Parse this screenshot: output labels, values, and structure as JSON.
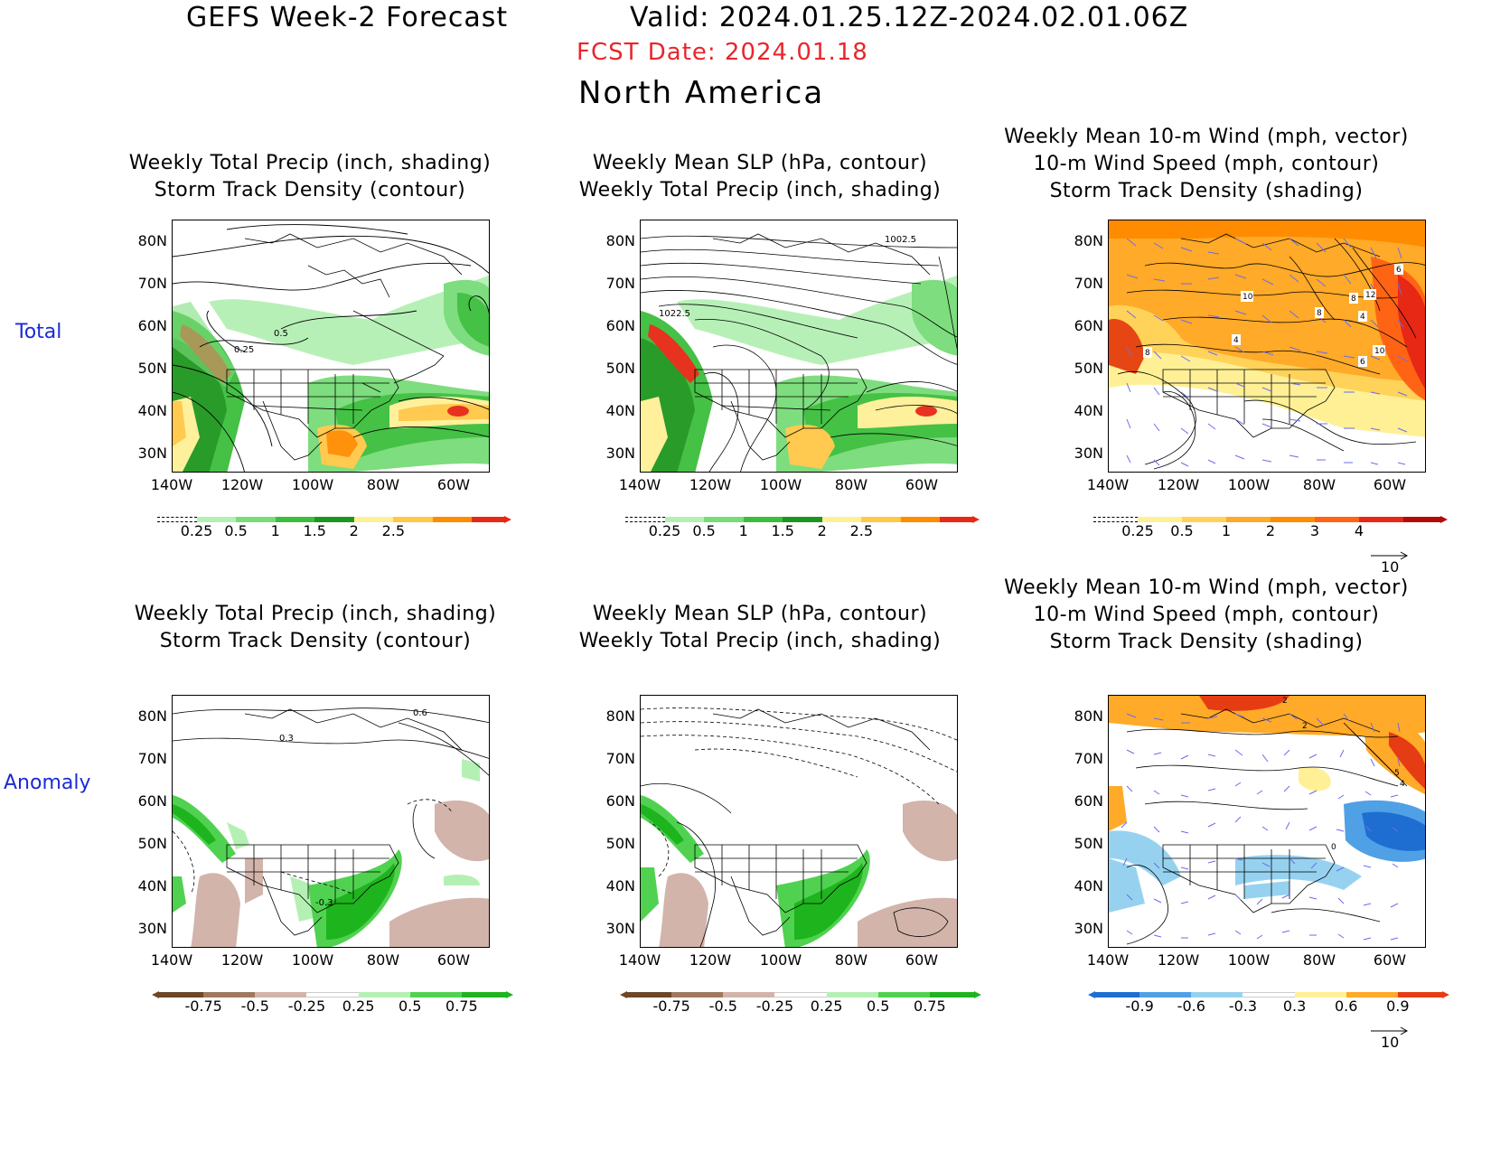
{
  "header": {
    "title": "GEFS Week-2 Forecast",
    "valid": "Valid: 2024.01.25.12Z-2024.02.01.06Z",
    "fcst_date": "FCST Date: 2024.01.18",
    "region": "North America",
    "fcst_color": "#e8262b"
  },
  "rows": [
    {
      "label": "Total"
    },
    {
      "label": "Anomaly"
    }
  ],
  "panels": [
    {
      "title1": "Weekly Total Precip (inch, shading)",
      "title2": "Storm Track Density (contour)",
      "title3": ""
    },
    {
      "title1": "Weekly Mean SLP (hPa, contour)",
      "title2": "Weekly Total Precip (inch, shading)",
      "title3": ""
    },
    {
      "title1": "Weekly Mean 10-m Wind (mph, vector)",
      "title2": "10-m Wind Speed (mph, contour)",
      "title3": "Storm Track Density (shading)"
    },
    {
      "title1": "Weekly Total Precip (inch, shading)",
      "title2": "Storm Track Density (contour)",
      "title3": ""
    },
    {
      "title1": "Weekly Mean SLP (hPa, contour)",
      "title2": "Weekly Total Precip (inch, shading)",
      "title3": ""
    },
    {
      "title1": "Weekly Mean 10-m Wind (mph, vector)",
      "title2": "10-m Wind Speed (mph, contour)",
      "title3": "Storm Track Density (shading)"
    }
  ],
  "axes": {
    "lat_labels": [
      "80N",
      "70N",
      "60N",
      "50N",
      "40N",
      "30N"
    ],
    "lon_labels": [
      "140W",
      "120W",
      "100W",
      "80W",
      "60W"
    ]
  },
  "contour_labels": {
    "p0": [
      "0.5",
      "0.25"
    ],
    "p1": [
      "1022.5",
      "1002.5"
    ],
    "p2": [
      "10",
      "8",
      "4",
      "12",
      "8",
      "4",
      "6",
      "10",
      "6",
      "8"
    ],
    "p3": [
      "0.6",
      "0.3",
      "-0.3"
    ],
    "p5": [
      "2",
      "2",
      "5",
      "4",
      "0"
    ]
  },
  "colorbars": {
    "precip_total": {
      "ticks": [
        "0.25",
        "0.5",
        "1",
        "1.5",
        "2",
        "2.5"
      ],
      "colors": [
        "#b4f0b4",
        "#78dc78",
        "#3cbe3c",
        "#1e961e",
        "#fff096",
        "#ffc846",
        "#ff8c00",
        "#e62814"
      ]
    },
    "storm_total": {
      "ticks": [
        "0.25",
        "0.5",
        "1",
        "2",
        "3",
        "4"
      ],
      "colors": [
        "#fff096",
        "#ffd25a",
        "#ffaa28",
        "#ff8c00",
        "#ff6414",
        "#e62814",
        "#b40a0a"
      ]
    },
    "precip_anom": {
      "ticks": [
        "-0.75",
        "-0.5",
        "-0.25",
        "0.25",
        "0.5",
        "0.75"
      ],
      "colors": [
        "#6e4628",
        "#a07860",
        "#d2b4aa",
        "#ffffff",
        "#b4f0b4",
        "#50d250",
        "#1eb41e"
      ]
    },
    "storm_anom": {
      "ticks": [
        "-0.9",
        "-0.6",
        "-0.3",
        "0.3",
        "0.6",
        "0.9"
      ],
      "colors": [
        "#1e6ed2",
        "#50a0e6",
        "#96d2f0",
        "#ffffff",
        "#fff096",
        "#ffaa28",
        "#e63c14"
      ]
    }
  },
  "vector_ref": {
    "value": "10"
  }
}
